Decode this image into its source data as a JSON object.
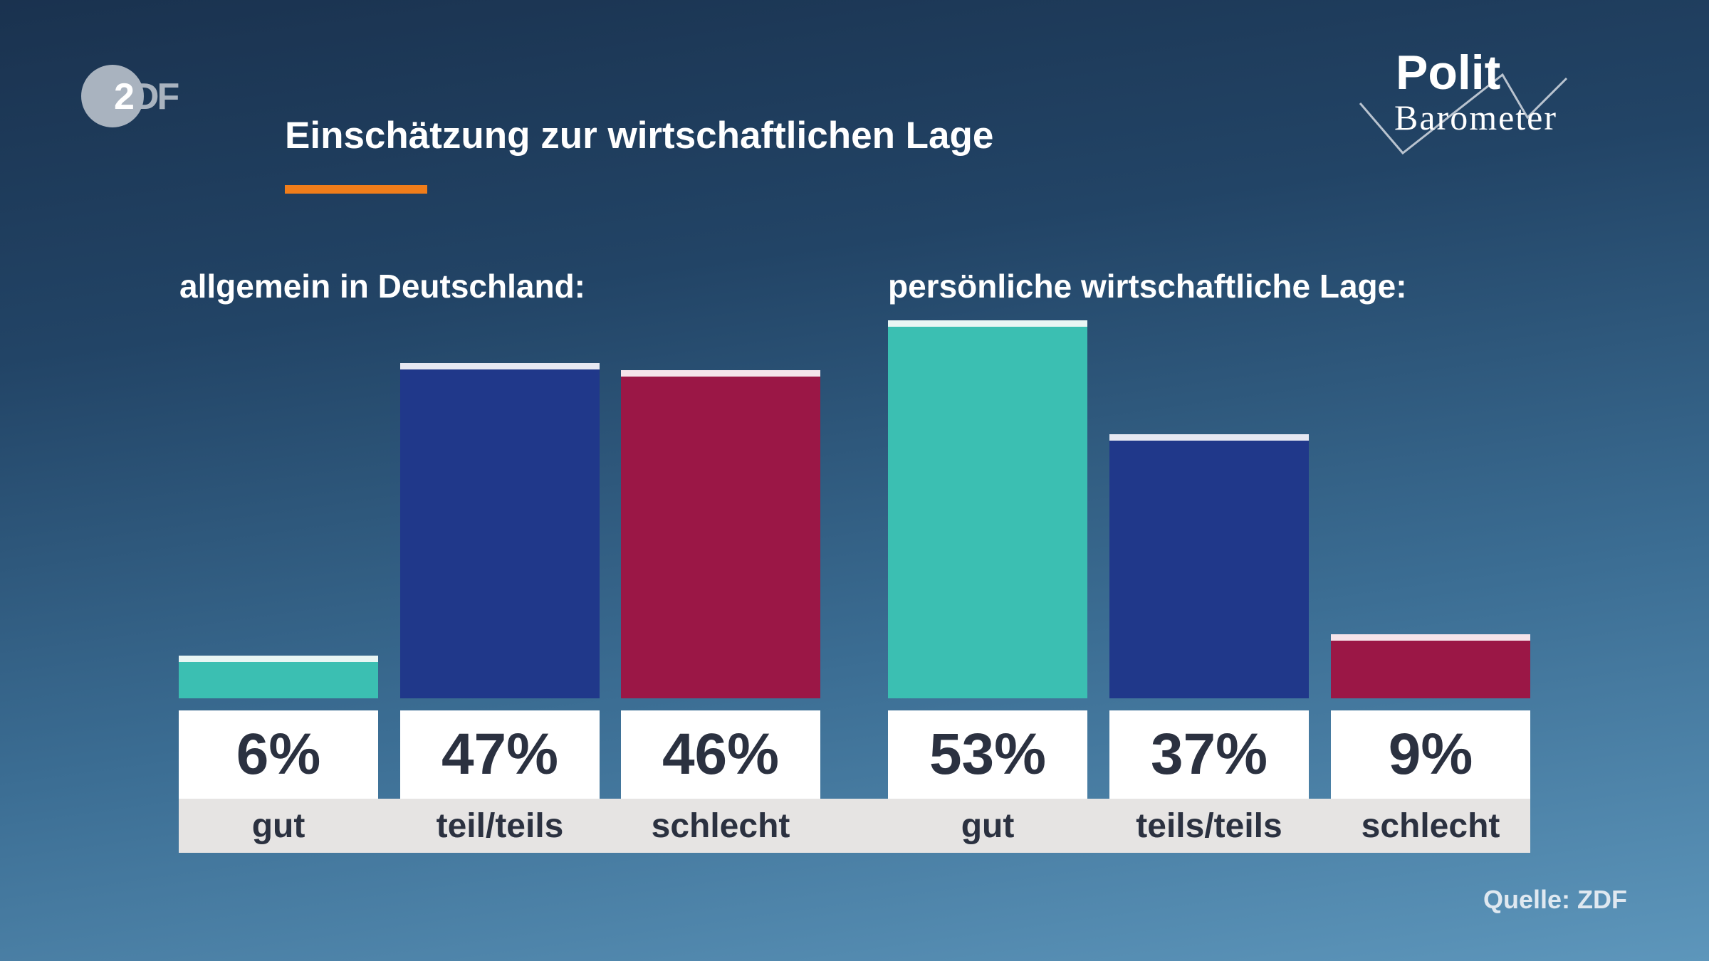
{
  "header": {
    "logo_text": "ZDF",
    "title": "Einschätzung zur wirtschaftlichen Lage",
    "brand_logo_text": [
      "Polit",
      "Barometer"
    ]
  },
  "chart_data": [
    {
      "type": "bar",
      "title": "allgemein in Deutschland:",
      "categories": [
        "gut",
        "teil/teils",
        "schlecht"
      ],
      "values": [
        6,
        47,
        46
      ],
      "value_labels": [
        "6%",
        "47%",
        "46%"
      ],
      "unit": "%",
      "colors": [
        "#3bbfb2",
        "#20388a",
        "#9b1746"
      ]
    },
    {
      "type": "bar",
      "title": "persönliche wirtschaftliche Lage:",
      "categories": [
        "gut",
        "teils/teils",
        "schlecht"
      ],
      "values": [
        53,
        37,
        9
      ],
      "value_labels": [
        "53%",
        "37%",
        "9%"
      ],
      "unit": "%",
      "colors": [
        "#3bbfb2",
        "#20388a",
        "#9b1746"
      ]
    }
  ],
  "cap_colors": [
    "#e9f6f4",
    "#e6e8f2",
    "#f6e4ea"
  ],
  "footer": {
    "source": "Quelle: ZDF"
  },
  "accent_color": "#f07d1a"
}
